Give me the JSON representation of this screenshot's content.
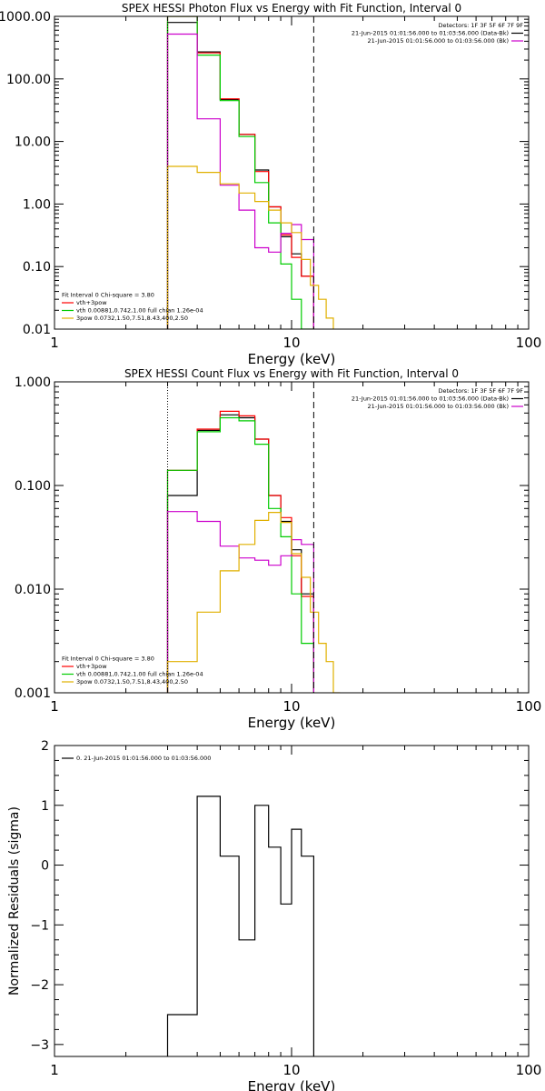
{
  "chart_data": [
    {
      "type": "line",
      "title": "SPEX HESSI Photon Flux vs Energy with Fit Function, Interval 0",
      "xlabel": "Energy (keV)",
      "ylabel": "",
      "xscale": "log",
      "yscale": "log",
      "xlim": [
        1,
        100
      ],
      "ylim": [
        0.01,
        1000
      ],
      "xticks": [
        "1",
        "10",
        "100"
      ],
      "yticks": [
        "0.01",
        "0.10",
        "1.00",
        "10.00",
        "100.00",
        "1000.00"
      ],
      "grid": false,
      "legend_top": {
        "position": "top-right",
        "lines": [
          {
            "text": "Detectors: 1F 3F 5F 6F 7F 9F",
            "color": ""
          },
          {
            "text": "21-Jun-2015 01:01:56.000 to 01:03:56.000 (Data-Bk)",
            "color": "#000000"
          },
          {
            "text": "21-Jun-2015 01:01:56.000 to 01:03:56.000 (Bk)",
            "color": "#cc00cc"
          }
        ]
      },
      "legend_bottom": {
        "position": "bottom-left",
        "lines": [
          {
            "text": "Fit Interval 0   Chi-square = 3.80",
            "color": ""
          },
          {
            "text": "vth+3pow",
            "color": "#ff0000"
          },
          {
            "text": "vth 0.00881,0.742,1.00   full chian 1.26e-04",
            "color": "#00cc00"
          },
          {
            "text": "3pow 0.0732,1.50,7.51,8.43,400,2.50",
            "color": "#e0b000"
          }
        ]
      },
      "vlines": [
        {
          "x": 3.0,
          "style": "dotted",
          "color": "#000000"
        },
        {
          "x": 12.4,
          "style": "dashed",
          "color": "#000000"
        }
      ],
      "series": [
        {
          "color": "#000000",
          "edges": [
            3.0,
            4.0,
            5.0,
            6.0,
            7.0,
            8.0,
            9.0,
            10.0,
            11.0,
            12.4
          ],
          "values": [
            800,
            270,
            47,
            13,
            3.5,
            0.9,
            0.3,
            0.16,
            0.07
          ]
        },
        {
          "color": "#ff0000",
          "edges": [
            3.0,
            4.0,
            5.0,
            6.0,
            7.0,
            8.0,
            9.0,
            10.0,
            11.0,
            12.4
          ],
          "values": [
            1150,
            260,
            48,
            13,
            3.3,
            0.9,
            0.32,
            0.14,
            0.07
          ]
        },
        {
          "color": "#00cc00",
          "edges": [
            3.0,
            4.0,
            5.0,
            6.0,
            7.0,
            8.0,
            9.0,
            10.0,
            11.0,
            12.4
          ],
          "values": [
            1150,
            240,
            45,
            12,
            2.2,
            0.5,
            0.11,
            0.03,
            0.007
          ]
        },
        {
          "color": "#cc00cc",
          "edges": [
            3.0,
            4.0,
            5.0,
            6.0,
            7.0,
            8.0,
            9.0,
            10.0,
            11.0,
            12.4
          ],
          "values": [
            520,
            23,
            2.0,
            0.8,
            0.2,
            0.17,
            0.34,
            0.47,
            0.27
          ]
        },
        {
          "color": "#e0b000",
          "edges": [
            3.0,
            4.0,
            5.0,
            6.0,
            7.0,
            8.0,
            9.0,
            10.0,
            11.0,
            12.0,
            13.0,
            14.0,
            15.0
          ],
          "values": [
            4.0,
            3.2,
            2.1,
            1.5,
            1.1,
            0.8,
            0.5,
            0.35,
            0.13,
            0.05,
            0.03,
            0.015
          ]
        }
      ]
    },
    {
      "type": "line",
      "title": "SPEX HESSI Count Flux vs Energy with Fit Function, Interval 0",
      "xlabel": "Energy (keV)",
      "ylabel": "",
      "xscale": "log",
      "yscale": "log",
      "xlim": [
        1,
        100
      ],
      "ylim": [
        0.001,
        1
      ],
      "xticks": [
        "1",
        "10",
        "100"
      ],
      "yticks": [
        "0.001",
        "0.010",
        "0.100",
        "1.000"
      ],
      "grid": false,
      "legend_top": {
        "position": "top-right",
        "lines": [
          {
            "text": "Detectors: 1F 3F 5F 6F 7F 9F",
            "color": ""
          },
          {
            "text": "21-Jun-2015 01:01:56.000 to 01:03:56.000 (Data-Bk)",
            "color": "#000000"
          },
          {
            "text": "21-Jun-2015 01:01:56.000 to 01:03:56.000 (Bk)",
            "color": "#cc00cc"
          }
        ]
      },
      "legend_bottom": {
        "position": "bottom-left",
        "lines": [
          {
            "text": "Fit Interval 0   Chi-square = 3.80",
            "color": ""
          },
          {
            "text": "vth+3pow",
            "color": "#ff0000"
          },
          {
            "text": "vth 0.00881,0.742,1.00   full chian 1.26e-04",
            "color": "#00cc00"
          },
          {
            "text": "3pow 0.0732,1.50,7.51,8.43,400,2.50",
            "color": "#e0b000"
          }
        ]
      },
      "vlines": [
        {
          "x": 3.0,
          "style": "dotted",
          "color": "#000000"
        },
        {
          "x": 12.4,
          "style": "dashed",
          "color": "#000000"
        }
      ],
      "series": [
        {
          "color": "#000000",
          "edges": [
            3.0,
            4.0,
            5.0,
            6.0,
            7.0,
            8.0,
            9.0,
            10.0,
            11.0,
            12.4
          ],
          "values": [
            0.08,
            0.34,
            0.48,
            0.45,
            0.28,
            0.08,
            0.045,
            0.024,
            0.009
          ]
        },
        {
          "color": "#ff0000",
          "edges": [
            3.0,
            4.0,
            5.0,
            6.0,
            7.0,
            8.0,
            9.0,
            10.0,
            11.0,
            12.4
          ],
          "values": [
            0.14,
            0.35,
            0.52,
            0.47,
            0.28,
            0.08,
            0.049,
            0.021,
            0.0085
          ]
        },
        {
          "color": "#00cc00",
          "edges": [
            3.0,
            4.0,
            5.0,
            6.0,
            7.0,
            8.0,
            9.0,
            10.0,
            11.0,
            12.4
          ],
          "values": [
            0.14,
            0.33,
            0.45,
            0.42,
            0.25,
            0.06,
            0.032,
            0.009,
            0.003
          ]
        },
        {
          "color": "#cc00cc",
          "edges": [
            3.0,
            4.0,
            5.0,
            6.0,
            7.0,
            8.0,
            9.0,
            10.0,
            11.0,
            12.4
          ],
          "values": [
            0.056,
            0.045,
            0.026,
            0.02,
            0.019,
            0.017,
            0.021,
            0.03,
            0.027
          ]
        },
        {
          "color": "#e0b000",
          "edges": [
            3.0,
            4.0,
            5.0,
            6.0,
            7.0,
            8.0,
            9.0,
            10.0,
            11.0,
            12.0,
            13.0,
            14.0,
            15.0,
            16.0
          ],
          "values": [
            0.002,
            0.006,
            0.015,
            0.027,
            0.046,
            0.055,
            0.044,
            0.022,
            0.013,
            0.006,
            0.003,
            0.002,
            0.001
          ]
        }
      ]
    },
    {
      "type": "line",
      "title": "",
      "xlabel": "Energy (keV)",
      "ylabel": "Normalized Residuals (sigma)",
      "xscale": "log",
      "yscale": "linear",
      "xlim": [
        1,
        100
      ],
      "ylim": [
        -3.2,
        2
      ],
      "xticks": [
        "1",
        "10",
        "100"
      ],
      "yticks": [
        "−3",
        "−2",
        "−1",
        "0",
        "1",
        "2"
      ],
      "grid": false,
      "legend_top": {
        "position": "top-left",
        "lines": [
          {
            "text": "0. 21-Jun-2015 01:01:56.000 to 01:03:56.000",
            "color": "#000000"
          }
        ]
      },
      "series": [
        {
          "color": "#000000",
          "edges": [
            3.0,
            4.0,
            5.0,
            6.0,
            7.0,
            8.0,
            9.0,
            10.0,
            11.0,
            12.4
          ],
          "values": [
            -2.5,
            1.15,
            0.15,
            -1.25,
            1.0,
            0.3,
            -0.65,
            0.6,
            0.15
          ]
        }
      ]
    }
  ]
}
